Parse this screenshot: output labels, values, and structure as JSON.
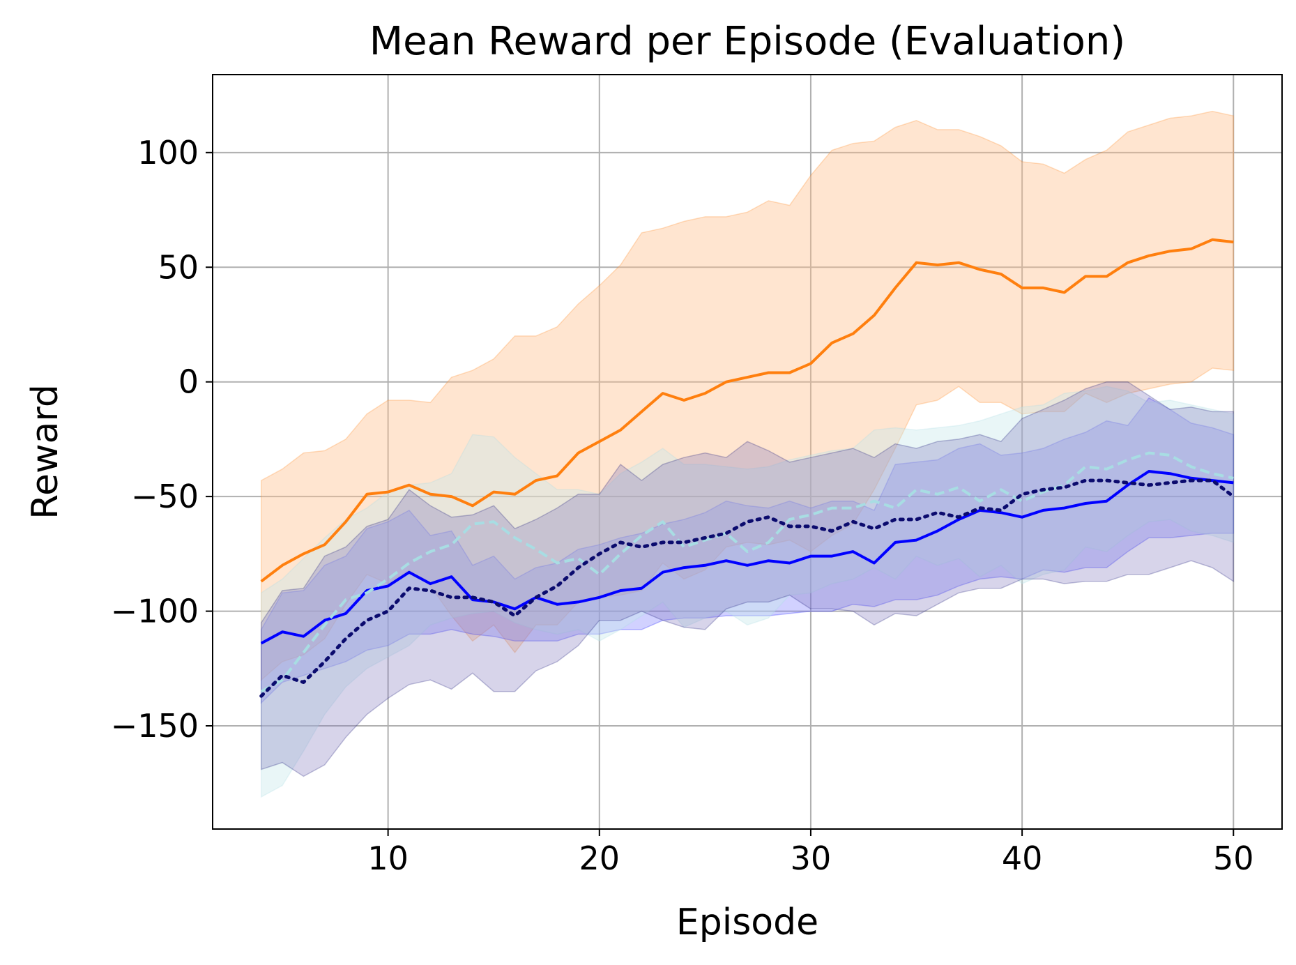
{
  "chart_data": {
    "type": "line",
    "title": "Mean Reward per Episode (Evaluation)",
    "xlabel": "Episode",
    "ylabel": "Reward",
    "xlim": [
      1.7,
      52.3
    ],
    "ylim": [
      -195,
      134
    ],
    "grid": true,
    "xticks": [
      10,
      20,
      30,
      40,
      50
    ],
    "yticks": [
      100,
      50,
      0,
      -50,
      -100,
      -150
    ],
    "x": [
      4,
      5,
      6,
      7,
      8,
      9,
      10,
      11,
      12,
      13,
      14,
      15,
      16,
      17,
      18,
      19,
      20,
      21,
      22,
      23,
      24,
      25,
      26,
      27,
      28,
      29,
      30,
      31,
      32,
      33,
      34,
      35,
      36,
      37,
      38,
      39,
      40,
      41,
      42,
      43,
      44,
      45,
      46,
      47,
      48,
      49,
      50
    ],
    "series": [
      {
        "name": "orange",
        "color": "#ff7f0e",
        "dash": "solid",
        "values": [
          -87,
          -80,
          -75,
          -71,
          -61,
          -49,
          -48,
          -45,
          -49,
          -50,
          -54,
          -48,
          -49,
          -43,
          -41,
          -31,
          -26,
          -21,
          -13,
          -5,
          -8,
          -5,
          0,
          2,
          4,
          4,
          8,
          17,
          21,
          29,
          41,
          52,
          51,
          52,
          49,
          47,
          41,
          41,
          39,
          46,
          46,
          52,
          55,
          57,
          58,
          62,
          61
        ],
        "upper": [
          -43,
          -38,
          -31,
          -30,
          -25,
          -14,
          -8,
          -8,
          -9,
          2,
          5,
          10,
          20,
          20,
          24,
          34,
          42,
          51,
          65,
          67,
          70,
          72,
          72,
          74,
          79,
          77,
          90,
          101,
          104,
          105,
          111,
          114,
          110,
          110,
          107,
          103,
          96,
          95,
          91,
          97,
          101,
          109,
          112,
          115,
          116,
          118,
          116
        ],
        "lower": [
          -130,
          -122,
          -119,
          -112,
          -97,
          -84,
          -88,
          -82,
          -89,
          -102,
          -113,
          -106,
          -118,
          -106,
          -106,
          -96,
          -94,
          -93,
          -91,
          -79,
          -86,
          -82,
          -72,
          -70,
          -71,
          -69,
          -74,
          -67,
          -62,
          -47,
          -29,
          -10,
          -8,
          -2,
          -9,
          -9,
          -14,
          -13,
          -13,
          -5,
          -9,
          -5,
          -3,
          -1,
          0,
          6,
          5
        ]
      },
      {
        "name": "blue",
        "color": "#0000ff",
        "dash": "solid",
        "values": [
          -114,
          -109,
          -111,
          -104,
          -101,
          -91,
          -89,
          -83,
          -88,
          -85,
          -95,
          -96,
          -99,
          -94,
          -97,
          -96,
          -94,
          -91,
          -90,
          -83,
          -81,
          -80,
          -78,
          -80,
          -78,
          -79,
          -76,
          -76,
          -74,
          -79,
          -70,
          -69,
          -65,
          -60,
          -56,
          -57,
          -59,
          -56,
          -55,
          -53,
          -52,
          -45,
          -39,
          -40,
          -42,
          -43,
          -44
        ],
        "upper": [
          -108,
          -92,
          -91,
          -80,
          -76,
          -64,
          -61,
          -56,
          -67,
          -65,
          -80,
          -76,
          -86,
          -81,
          -79,
          -73,
          -71,
          -68,
          -66,
          -62,
          -60,
          -57,
          -52,
          -54,
          -55,
          -52,
          -55,
          -52,
          -52,
          -56,
          -36,
          -35,
          -34,
          -29,
          -27,
          -32,
          -31,
          -29,
          -25,
          -22,
          -17,
          -19,
          -7,
          -12,
          -18,
          -20,
          -23
        ],
        "lower": [
          -140,
          -131,
          -128,
          -125,
          -122,
          -117,
          -115,
          -110,
          -110,
          -108,
          -110,
          -111,
          -113,
          -113,
          -113,
          -110,
          -110,
          -108,
          -108,
          -104,
          -103,
          -103,
          -102,
          -102,
          -102,
          -101,
          -100,
          -100,
          -97,
          -98,
          -95,
          -95,
          -93,
          -89,
          -86,
          -85,
          -86,
          -82,
          -83,
          -81,
          -81,
          -74,
          -68,
          -68,
          -67,
          -66,
          -66
        ]
      },
      {
        "name": "light-blue-dashed",
        "color": "#a8dde3",
        "dash": "dashed",
        "values": [
          -135,
          -130,
          -118,
          -106,
          -95,
          -92,
          -86,
          -79,
          -74,
          -71,
          -62,
          -61,
          -68,
          -73,
          -79,
          -77,
          -84,
          -75,
          -67,
          -61,
          -72,
          -69,
          -66,
          -74,
          -70,
          -60,
          -58,
          -55,
          -55,
          -52,
          -55,
          -47,
          -49,
          -46,
          -52,
          -47,
          -52,
          -48,
          -45,
          -37,
          -38,
          -34,
          -31,
          -32,
          -37,
          -40,
          -42
        ],
        "upper": [
          -92,
          -86,
          -77,
          -68,
          -60,
          -55,
          -48,
          -45,
          -44,
          -40,
          -23,
          -24,
          -33,
          -40,
          -47,
          -47,
          -49,
          -40,
          -35,
          -29,
          -36,
          -36,
          -37,
          -38,
          -37,
          -34,
          -32,
          -30,
          -29,
          -21,
          -20,
          -21,
          -20,
          -19,
          -17,
          -14,
          -11,
          -10,
          -5,
          -4,
          -2,
          -4,
          -9,
          -8,
          -10,
          -12,
          -14
        ],
        "lower": [
          -181,
          -176,
          -161,
          -145,
          -133,
          -125,
          -120,
          -115,
          -106,
          -103,
          -101,
          -100,
          -105,
          -108,
          -110,
          -108,
          -113,
          -108,
          -102,
          -96,
          -107,
          -103,
          -100,
          -106,
          -103,
          -93,
          -92,
          -88,
          -86,
          -81,
          -86,
          -76,
          -80,
          -77,
          -85,
          -80,
          -88,
          -84,
          -82,
          -72,
          -74,
          -67,
          -61,
          -60,
          -65,
          -67,
          -70
        ]
      },
      {
        "name": "navy-dotted",
        "color": "#0b0b6e",
        "dash": "dotted",
        "values": [
          -137,
          -128,
          -131,
          -122,
          -112,
          -104,
          -100,
          -90,
          -91,
          -94,
          -94,
          -96,
          -102,
          -94,
          -89,
          -81,
          -75,
          -70,
          -72,
          -70,
          -70,
          -68,
          -66,
          -61,
          -59,
          -63,
          -63,
          -65,
          -61,
          -64,
          -60,
          -60,
          -57,
          -59,
          -55,
          -56,
          -49,
          -47,
          -46,
          -43,
          -43,
          -44,
          -45,
          -44,
          -43,
          -43,
          -50
        ],
        "upper": [
          -105,
          -91,
          -90,
          -76,
          -72,
          -63,
          -60,
          -47,
          -54,
          -59,
          -58,
          -54,
          -64,
          -60,
          -55,
          -49,
          -49,
          -36,
          -43,
          -36,
          -33,
          -31,
          -33,
          -26,
          -30,
          -35,
          -33,
          -31,
          -29,
          -33,
          -27,
          -29,
          -26,
          -25,
          -23,
          -26,
          -16,
          -12,
          -8,
          -3,
          0,
          0,
          -6,
          -12,
          -11,
          -13,
          -13
        ],
        "lower": [
          -169,
          -166,
          -172,
          -167,
          -155,
          -145,
          -138,
          -132,
          -130,
          -134,
          -127,
          -135,
          -135,
          -126,
          -122,
          -115,
          -104,
          -104,
          -100,
          -104,
          -107,
          -108,
          -99,
          -96,
          -96,
          -93,
          -99,
          -99,
          -100,
          -106,
          -101,
          -102,
          -97,
          -92,
          -90,
          -90,
          -86,
          -86,
          -88,
          -87,
          -87,
          -84,
          -84,
          -81,
          -78,
          -81,
          -87
        ]
      }
    ],
    "bands": [
      {
        "series": "orange",
        "fill": "#ffbf8a",
        "opacity": 0.4
      },
      {
        "series": "blue",
        "fill": "#7b7bff",
        "opacity": 0.35
      },
      {
        "series": "light-blue-dashed",
        "fill": "#c8e8ec",
        "opacity": 0.4
      },
      {
        "series": "navy-dotted",
        "fill": "#7b6fb8",
        "opacity": 0.3
      }
    ],
    "draw_order": [
      "orange",
      "blue",
      "light-blue-dashed",
      "navy-dotted"
    ]
  }
}
